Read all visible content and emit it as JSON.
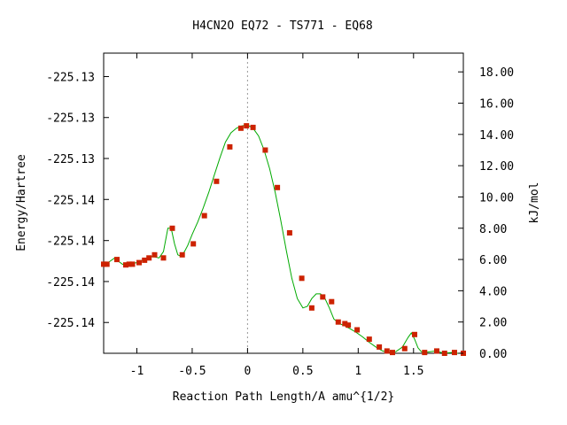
{
  "chart_data": {
    "type": "line",
    "title": "H4CN2O   EQ72 - TS771 - EQ68",
    "xlabel": "Reaction Path Length/A amu^{1/2}",
    "ylabel": "Energy/Hartree",
    "y2label": "kJ/mol",
    "xlim": [
      -1.3,
      1.95
    ],
    "ylim_kjmol": [
      0,
      19.2
    ],
    "x_ticks": [
      -1,
      -0.5,
      0,
      0.5,
      1,
      1.5
    ],
    "x_tick_labels": [
      "-1",
      "-0.5",
      "0",
      "0.5",
      "1",
      "1.5"
    ],
    "y_left_tick_values_kjmol": [
      17.7,
      15.08,
      12.46,
      9.84,
      7.21,
      4.59,
      1.97
    ],
    "y_left_tick_labels": [
      "-225.13",
      "-225.13",
      "-225.13",
      "-225.14",
      "-225.14",
      "-225.14",
      "-225.14"
    ],
    "y_right_ticks": [
      0,
      2,
      4,
      6,
      8,
      10,
      12,
      14,
      16,
      18
    ],
    "y_right_tick_labels": [
      "0.00",
      "2.00",
      "4.00",
      "6.00",
      "8.00",
      "10.00",
      "12.00",
      "14.00",
      "16.00",
      "18.00"
    ],
    "ts_x": 0,
    "grid": false,
    "colors": {
      "curve": "#00aa00",
      "points": "#cc2200",
      "ts_line": "#999999",
      "axis": "#000000"
    },
    "curve": {
      "x": [
        -1.3,
        -1.26,
        -1.2,
        -1.17,
        -1.13,
        -1.1,
        -1.07,
        -1.04,
        -1.0,
        -0.97,
        -0.93,
        -0.9,
        -0.86,
        -0.8,
        -0.76,
        -0.72,
        -0.69,
        -0.66,
        -0.63,
        -0.6,
        -0.57,
        -0.54,
        -0.5,
        -0.45,
        -0.4,
        -0.35,
        -0.3,
        -0.25,
        -0.2,
        -0.15,
        -0.1,
        -0.05,
        0.0,
        0.05,
        0.1,
        0.15,
        0.2,
        0.25,
        0.3,
        0.35,
        0.4,
        0.45,
        0.5,
        0.54,
        0.58,
        0.62,
        0.66,
        0.7,
        0.74,
        0.78,
        0.83,
        0.88,
        0.93,
        0.98,
        1.04,
        1.1,
        1.16,
        1.22,
        1.28,
        1.34,
        1.4,
        1.45,
        1.48,
        1.51,
        1.54,
        1.57,
        1.6,
        1.65,
        1.7,
        1.75,
        1.8,
        1.85,
        1.9,
        1.95
      ],
      "y": [
        5.7,
        5.8,
        6.1,
        5.9,
        5.7,
        5.65,
        5.7,
        5.75,
        5.8,
        5.9,
        6.0,
        6.1,
        6.2,
        6.1,
        6.5,
        8.0,
        8.0,
        7.0,
        6.3,
        6.2,
        6.5,
        6.9,
        7.6,
        8.4,
        9.3,
        10.3,
        11.4,
        12.5,
        13.5,
        14.1,
        14.4,
        14.55,
        14.6,
        14.4,
        13.9,
        13.0,
        11.8,
        10.3,
        8.5,
        6.6,
        4.8,
        3.5,
        2.9,
        3.0,
        3.5,
        3.8,
        3.8,
        3.5,
        2.9,
        2.2,
        1.9,
        1.75,
        1.55,
        1.35,
        1.05,
        0.7,
        0.4,
        0.15,
        0.05,
        0.1,
        0.4,
        1.0,
        1.3,
        0.9,
        0.35,
        0.1,
        0.05,
        0.1,
        0.15,
        0.05,
        0.02,
        0.05,
        0.0,
        0.02
      ]
    },
    "points": {
      "x": [
        -1.3,
        -1.27,
        -1.18,
        -1.1,
        -1.07,
        -1.04,
        -0.98,
        -0.93,
        -0.89,
        -0.84,
        -0.76,
        -0.68,
        -0.59,
        -0.49,
        -0.39,
        -0.28,
        -0.16,
        -0.06,
        -0.01,
        0.05,
        0.16,
        0.27,
        0.38,
        0.49,
        0.58,
        0.68,
        0.76,
        0.82,
        0.88,
        0.91,
        0.99,
        1.1,
        1.19,
        1.26,
        1.31,
        1.42,
        1.51,
        1.6,
        1.71,
        1.78,
        1.87,
        1.95
      ],
      "y": [
        5.7,
        5.7,
        6.0,
        5.65,
        5.7,
        5.7,
        5.8,
        5.95,
        6.1,
        6.3,
        6.1,
        8.0,
        6.3,
        7.0,
        8.8,
        11.0,
        13.2,
        14.4,
        14.55,
        14.45,
        13.0,
        10.6,
        7.7,
        4.8,
        2.9,
        3.6,
        3.3,
        2.0,
        1.9,
        1.8,
        1.5,
        0.9,
        0.4,
        0.15,
        0.05,
        0.3,
        1.2,
        0.05,
        0.15,
        0.0,
        0.05,
        0.0
      ]
    }
  }
}
